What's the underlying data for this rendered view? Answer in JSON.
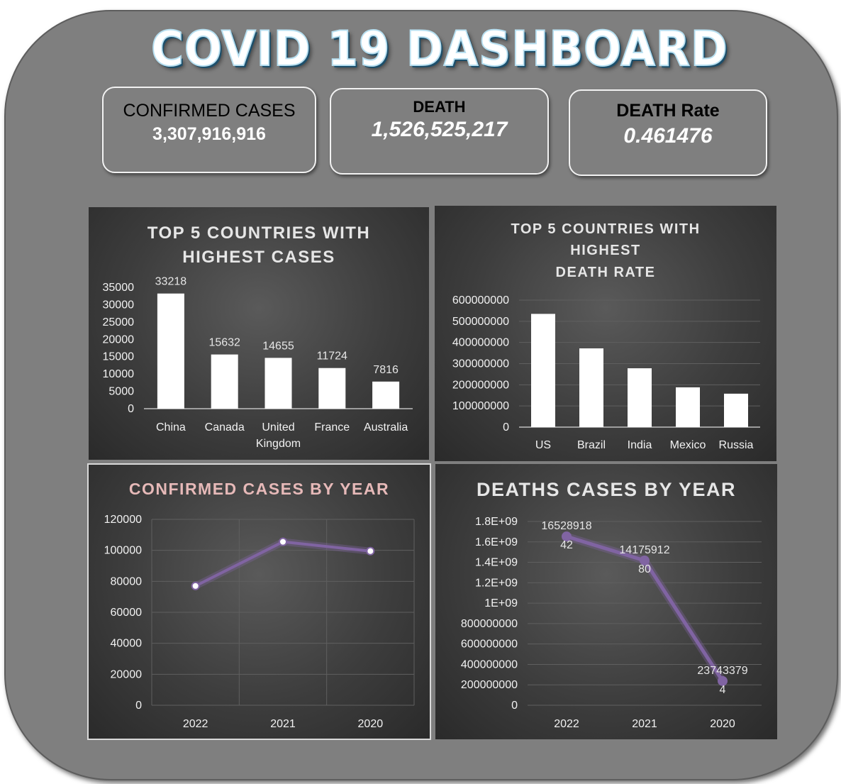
{
  "dashboard": {
    "title": "COVID 19 DASHBOARD"
  },
  "kpis": {
    "confirmed": {
      "label": "CONFIRMED CASES",
      "value": "3,307,916,916"
    },
    "death": {
      "label": "DEATH",
      "value": "1,526,525,217"
    },
    "death_rate": {
      "label": "DEATH Rate",
      "value": "0.461476"
    }
  },
  "colors": {
    "line": "#8064a2",
    "bar": "#ffffff",
    "panel": "#3d3d3d"
  },
  "chart_data": [
    {
      "type": "bar",
      "title": [
        "TOP 5 COUNTRIES WITH",
        "HIGHEST CASES"
      ],
      "categories": [
        [
          "China"
        ],
        [
          "Canada"
        ],
        [
          "United",
          "Kingdom"
        ],
        [
          "France"
        ],
        [
          "Australia"
        ]
      ],
      "values": [
        33218,
        15632,
        14655,
        11724,
        7816
      ],
      "data_labels": [
        "33218",
        "15632",
        "14655",
        "11724",
        "7816"
      ],
      "ylim": [
        0,
        35000
      ],
      "yticks": [
        "0",
        "5000",
        "10000",
        "15000",
        "20000",
        "25000",
        "30000",
        "35000"
      ],
      "grid": true
    },
    {
      "type": "bar",
      "title": [
        "TOP 5 COUNTRIES WITH",
        "HIGHEST",
        "DEATH RATE"
      ],
      "categories": [
        [
          "US"
        ],
        [
          "Brazil"
        ],
        [
          "India"
        ],
        [
          "Mexico"
        ],
        [
          "Russia"
        ]
      ],
      "values": [
        535000000,
        372000000,
        278000000,
        188000000,
        158000000
      ],
      "ylim": [
        0,
        600000000
      ],
      "yticks": [
        "0",
        "100000000",
        "200000000",
        "300000000",
        "400000000",
        "500000000",
        "600000000"
      ],
      "grid": true
    },
    {
      "type": "line",
      "title": [
        "CONFIRMED  CASES  BY YEAR"
      ],
      "categories": [
        [
          "2022"
        ],
        [
          "2021"
        ],
        [
          "2020"
        ]
      ],
      "values": [
        77000,
        105500,
        99500
      ],
      "ylim": [
        0,
        120000
      ],
      "yticks": [
        "0",
        "20000",
        "40000",
        "60000",
        "80000",
        "100000",
        "120000"
      ],
      "grid": true
    },
    {
      "type": "line",
      "title": [
        "DEATHS CASES BY YEAR"
      ],
      "categories": [
        [
          "2022"
        ],
        [
          "2021"
        ],
        [
          "2020"
        ]
      ],
      "values": [
        1652891842,
        1417591280,
        237433794
      ],
      "data_labels": [
        [
          "16528918",
          "42"
        ],
        [
          "14175912",
          "80"
        ],
        [
          "23743379",
          "4"
        ]
      ],
      "ylim": [
        0,
        1800000000
      ],
      "yticks": [
        "0",
        "200000000",
        "400000000",
        "600000000",
        "800000000",
        "1E+09",
        "1.2E+09",
        "1.4E+09",
        "1.6E+09",
        "1.8E+09"
      ],
      "grid": true
    }
  ]
}
